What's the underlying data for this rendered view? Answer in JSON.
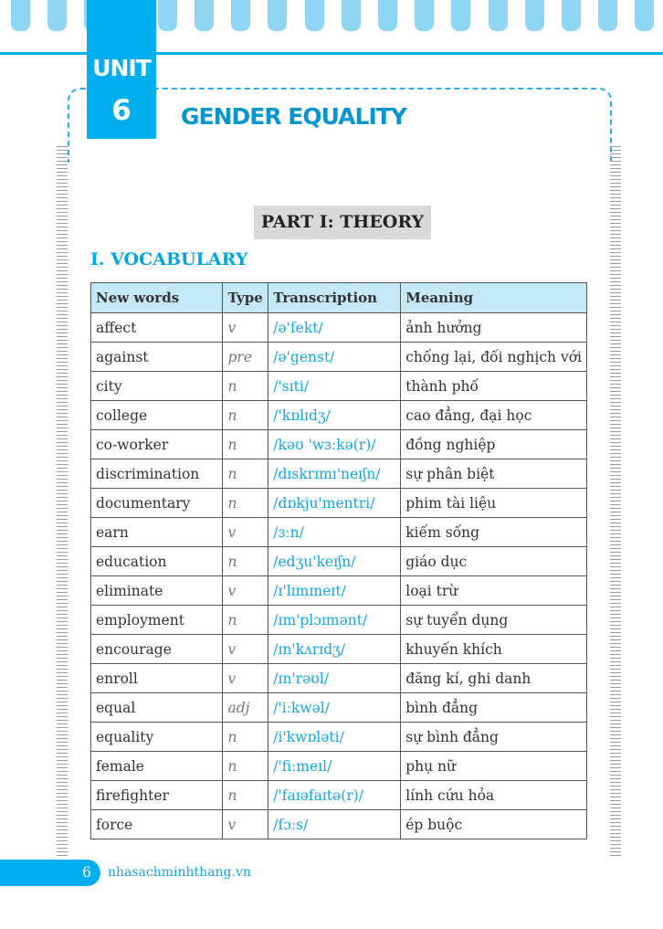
{
  "unit": {
    "label": "UNIT",
    "number": "6",
    "title": "GENDER EQUALITY"
  },
  "part_title": "PART I: THEORY",
  "section_title": "I. VOCABULARY",
  "table": {
    "headers": [
      "New words",
      "Type",
      "Transcription",
      "Meaning"
    ],
    "rows": [
      [
        "affect",
        "v",
        "/ə'fekt/",
        "ảnh hưởng"
      ],
      [
        "against",
        "pre",
        "/ə'genst/",
        "chống lại, đối nghịch với"
      ],
      [
        "city",
        "n",
        "/'sɪti/",
        "thành phố"
      ],
      [
        "college",
        "n",
        "/'kɒlɪdʒ/",
        "cao đẳng, đại học"
      ],
      [
        "co-worker",
        "n",
        "/kəʊ 'wɜːkə(r)/",
        "đồng nghiệp"
      ],
      [
        "discrimination",
        "n",
        "/dɪskrɪmɪ'neɪʃn/",
        "sự phân biệt"
      ],
      [
        "documentary",
        "n",
        "/dɒkju'mentri/",
        "phim tài liệu"
      ],
      [
        "earn",
        "v",
        "/ɜːn/",
        "kiếm sống"
      ],
      [
        "education",
        "n",
        "/edʒu'keɪʃn/",
        "giáo dục"
      ],
      [
        "eliminate",
        "v",
        "/ɪ'lɪmɪneɪt/",
        "loại trừ"
      ],
      [
        "employment",
        "n",
        "/ɪm'plɔɪmənt/",
        "sự tuyển dụng"
      ],
      [
        "encourage",
        "v",
        "/ɪn'kʌrɪdʒ/",
        "khuyến khích"
      ],
      [
        "enroll",
        "v",
        "/ɪn'rəʊl/",
        "đăng kí, ghi danh"
      ],
      [
        "equal",
        "adj",
        "/'iːkwəl/",
        "bình đẳng"
      ],
      [
        "equality",
        "n",
        "/i'kwɒləti/",
        "sự bình đẳng"
      ],
      [
        "female",
        "n",
        "/'fiːmeɪl/",
        "phụ nữ"
      ],
      [
        "firefighter",
        "n",
        "/'faɪəfaɪtə(r)/",
        "lính cứu hỏa"
      ],
      [
        "force",
        "v",
        "/fɔːs/",
        "ép buộc"
      ]
    ]
  },
  "footer": {
    "page_number": "6",
    "website": "nhasachminhthang.vn"
  },
  "colors": {
    "accent": "#00aeef",
    "title": "#0795d0",
    "header_bg": "#c5e8f7",
    "transcription": "#14a7e3"
  }
}
